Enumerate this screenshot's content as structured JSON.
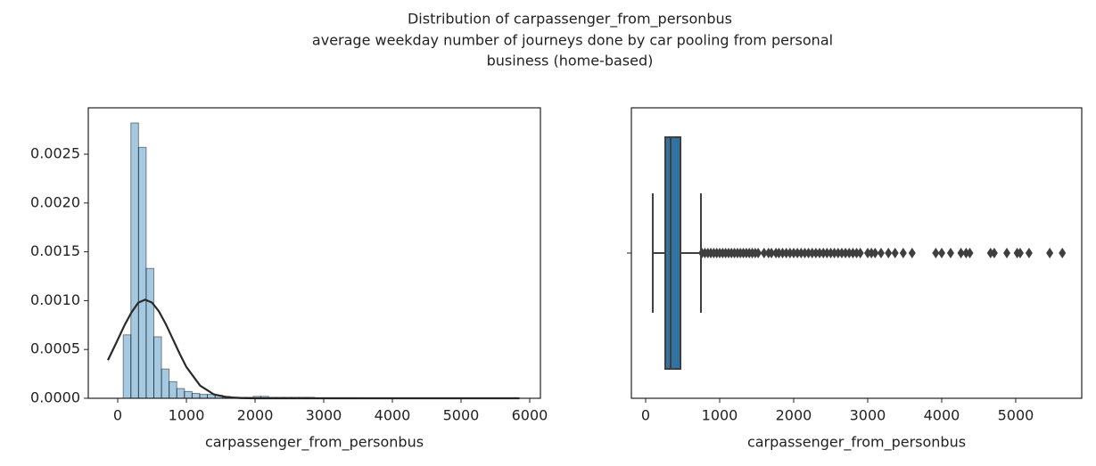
{
  "suptitle": [
    "Distribution of carpassenger_from_personbus",
    "average weekday number of journeys done by car pooling from personal",
    "business (home-based)"
  ],
  "chart_data": [
    {
      "type": "histogram",
      "bins": [
        80,
        191.4,
        302.8,
        414.2,
        525.6,
        637,
        748.4,
        859.8,
        971.2,
        1082.6,
        1194,
        1305.4,
        1416.8,
        1528.2,
        1639.6,
        1751,
        1862.4,
        1973.8,
        2085.2,
        2196.6,
        2308,
        2419.4,
        2530.8,
        2642.2,
        2753.6,
        2865,
        2976.4,
        3087.8,
        3199.2,
        3310.6,
        3422,
        3533.4,
        3644.8,
        3756.2,
        3867.6,
        3979,
        4090.4,
        4201.8,
        4313.2,
        4424.6,
        4536,
        4647.4,
        4758.8,
        4870.2,
        4981.6,
        5093,
        5204.4,
        5315.8,
        5427.2,
        5538.6,
        5650
      ],
      "values": [
        0.00065,
        0.00282,
        0.00257,
        0.00133,
        0.00063,
        0.0003,
        0.00017,
        0.0001,
        7e-05,
        5e-05,
        4e-05,
        4e-05,
        3e-05,
        2e-05,
        1e-05,
        1e-05,
        1e-05,
        2e-05,
        2e-05,
        1e-05,
        1e-05,
        1e-05,
        1e-05,
        1e-05,
        1e-05,
        5e-06,
        5e-06,
        5e-06,
        5e-06,
        5e-06,
        5e-06,
        0,
        0,
        0,
        0,
        0,
        0,
        0,
        0,
        0,
        0,
        0,
        0,
        0,
        0,
        0,
        0,
        0,
        0,
        0
      ],
      "color": "#1f77b4",
      "curve": {
        "x": [
          -143,
          0,
          100,
          200,
          300,
          400,
          500,
          600,
          700,
          800,
          900,
          1000,
          1200,
          1400,
          1600,
          1800,
          2000,
          5850
        ],
        "values": [
          0.00039,
          0.0006,
          0.00075,
          0.00088,
          0.00098,
          0.00101,
          0.00098,
          0.00089,
          0.00076,
          0.00061,
          0.00046,
          0.00032,
          0.00013,
          4e-05,
          1e-05,
          2e-06,
          0,
          0
        ],
        "color": "#2a2a2a"
      },
      "xlabel": "carpassenger_from_personbus",
      "xlim": [
        -429,
        6156
      ],
      "ylim": [
        0,
        0.002975
      ],
      "xticks": [
        0,
        1000,
        2000,
        3000,
        4000,
        5000,
        6000
      ],
      "yticks": [
        {
          "value": 0,
          "label": "0.0000"
        },
        {
          "value": 0.0005,
          "label": "0.0005"
        },
        {
          "value": 0.001,
          "label": "0.0010"
        },
        {
          "value": 0.0015,
          "label": "0.0015"
        },
        {
          "value": 0.002,
          "label": "0.0020"
        },
        {
          "value": 0.0025,
          "label": "0.0025"
        }
      ]
    },
    {
      "type": "box",
      "whislo": 96,
      "q1": 265,
      "med": 337,
      "q3": 470,
      "whishi": 747,
      "fliers": [
        760,
        800,
        840,
        880,
        920,
        960,
        1000,
        1040,
        1080,
        1120,
        1160,
        1200,
        1240,
        1280,
        1320,
        1360,
        1400,
        1440,
        1480,
        1520,
        1600,
        1660,
        1700,
        1760,
        1800,
        1850,
        1900,
        1950,
        2000,
        2050,
        2100,
        2150,
        2200,
        2250,
        2300,
        2350,
        2400,
        2450,
        2500,
        2550,
        2600,
        2650,
        2700,
        2750,
        2800,
        2850,
        2900,
        3000,
        3050,
        3100,
        3180,
        3280,
        3370,
        3480,
        3600,
        3920,
        4000,
        4120,
        4260,
        4330,
        4380,
        4660,
        4710,
        4880,
        5020,
        5060,
        5180,
        5460,
        5630
      ],
      "color": "#3274a1",
      "xlabel": "carpassenger_from_personbus",
      "xlim": [
        -193,
        5892
      ],
      "xticks": [
        0,
        1000,
        2000,
        3000,
        4000,
        5000
      ]
    }
  ]
}
